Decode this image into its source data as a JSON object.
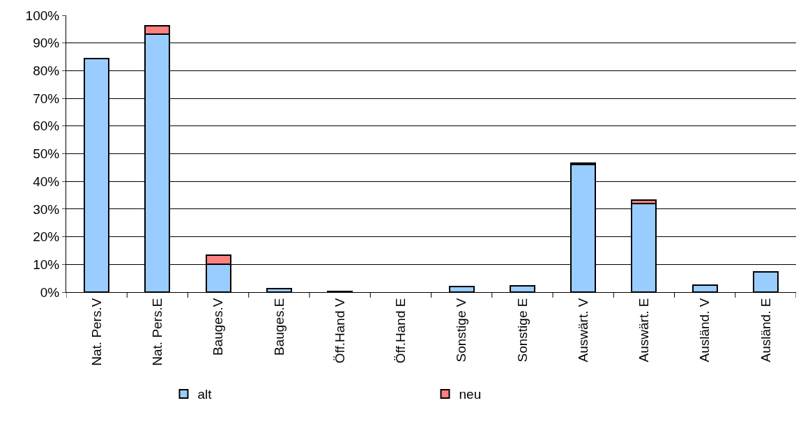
{
  "chart_data": {
    "type": "bar",
    "stacked": true,
    "categories": [
      "Nat. Pers.V",
      "Nat. Pers.E",
      "Bauges.V",
      "Bauges.E",
      "Öff.Hand V",
      "Öff.Hand E",
      "Sonstige V",
      "Sonstige E",
      "Auswärt. V",
      "Auswärt. E",
      "Ausländ. V",
      "Ausländ. E"
    ],
    "series": [
      {
        "name": "alt",
        "color": "#99ccff",
        "values": [
          84.5,
          93.2,
          10.0,
          1.3,
          0.3,
          null,
          1.9,
          2.2,
          46.0,
          31.9,
          2.5,
          7.2
        ]
      },
      {
        "name": "neu",
        "color": "#ff8080",
        "values": [
          null,
          3.0,
          3.3,
          null,
          null,
          null,
          null,
          null,
          0.7,
          1.4,
          null,
          null
        ]
      }
    ],
    "ylim": [
      0,
      100
    ],
    "yticks": [
      {
        "value": 0,
        "label": "0%"
      },
      {
        "value": 10,
        "label": "10%"
      },
      {
        "value": 20,
        "label": "20%"
      },
      {
        "value": 30,
        "label": "30%"
      },
      {
        "value": 40,
        "label": "40%"
      },
      {
        "value": 50,
        "label": "50%"
      },
      {
        "value": 60,
        "label": "60%"
      },
      {
        "value": 70,
        "label": "70%"
      },
      {
        "value": 80,
        "label": "80%"
      },
      {
        "value": 90,
        "label": "90%"
      },
      {
        "value": 100,
        "label": "100%"
      }
    ],
    "grid": "y",
    "legend": "bottom"
  }
}
